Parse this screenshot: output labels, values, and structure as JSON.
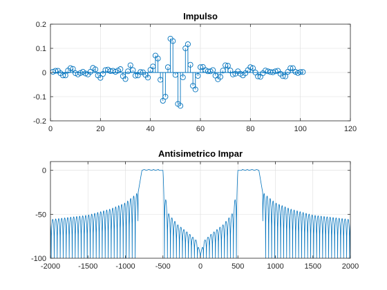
{
  "chart_data": [
    {
      "type": "stem",
      "title": "Impulso",
      "xlim": [
        0,
        120
      ],
      "ylim": [
        -0.2,
        0.2
      ],
      "xticks": [
        0,
        20,
        40,
        60,
        80,
        100,
        120
      ],
      "yticks": [
        -0.2,
        -0.1,
        0,
        0.1,
        0.2
      ],
      "xtick_labels": [
        "0",
        "20",
        "40",
        "60",
        "80",
        "100",
        "120"
      ],
      "ytick_labels": [
        "-0.2",
        "-0.1",
        "0",
        "0.1",
        "0.2"
      ],
      "grid": true,
      "color": "#0072BD",
      "x": [
        1,
        2,
        3,
        4,
        5,
        6,
        7,
        8,
        9,
        10,
        11,
        12,
        13,
        14,
        15,
        16,
        17,
        18,
        19,
        20,
        21,
        22,
        23,
        24,
        25,
        26,
        27,
        28,
        29,
        30,
        31,
        32,
        33,
        34,
        35,
        36,
        37,
        38,
        39,
        40,
        41,
        42,
        43,
        44,
        45,
        46,
        47,
        48,
        49,
        50,
        51,
        52,
        53,
        54,
        55,
        56,
        57,
        58,
        59,
        60,
        61,
        62,
        63,
        64,
        65,
        66,
        67,
        68,
        69,
        70,
        71,
        72,
        73,
        74,
        75,
        76,
        77,
        78,
        79,
        80,
        81,
        82,
        83,
        84,
        85,
        86,
        87,
        88,
        89,
        90,
        91,
        92,
        93,
        94,
        95,
        96,
        97,
        98,
        99,
        100,
        101
      ],
      "values": [
        0.003,
        0.007,
        0.007,
        -0.003,
        -0.012,
        -0.012,
        0.008,
        0.018,
        0.015,
        -0.003,
        -0.008,
        -0.002,
        0.003,
        -0.004,
        -0.008,
        0.003,
        0.019,
        0.013,
        -0.012,
        -0.022,
        -0.006,
        0.01,
        0.012,
        0.006,
        0.007,
        0.003,
        0.008,
        0.014,
        -0.015,
        -0.027,
        0.005,
        0.03,
        0.01,
        -0.013,
        -0.012,
        0.002,
        0.001,
        -0.01,
        -0.021,
        0.011,
        0.025,
        0.07,
        0.058,
        -0.03,
        -0.117,
        -0.1,
        0.022,
        0.14,
        0.13,
        -0.01,
        -0.13,
        -0.138,
        -0.02,
        0.1,
        0.117,
        0.032,
        -0.055,
        -0.07,
        -0.014,
        0.022,
        0.023,
        0.01,
        0.005,
        0.005,
        0.01,
        -0.013,
        -0.028,
        -0.018,
        0.008,
        0.03,
        0.028,
        0.008,
        -0.008,
        -0.005,
        0.005,
        -0.005,
        -0.012,
        -0.003,
        0.01,
        0.022,
        0.018,
        0,
        -0.016,
        -0.018,
        -0.003,
        0.008,
        0.005,
        0.002,
        0.001,
        0.005,
        0.007,
        -0.005,
        -0.015,
        -0.016,
        0.003,
        0.018,
        0.018,
        0.003,
        -0.002,
        0.002,
        0.002
      ]
    },
    {
      "type": "line",
      "title": "Antisimetrico Impar",
      "xlim": [
        -2000,
        2000
      ],
      "ylim": [
        -100,
        10
      ],
      "xticks": [
        -2000,
        -1500,
        -1000,
        -500,
        0,
        500,
        1000,
        1500,
        2000
      ],
      "yticks": [
        -100,
        -50,
        0
      ],
      "xtick_labels": [
        "-2000",
        "-1500",
        "-1000",
        "-500",
        "0",
        "500",
        "1000",
        "1500",
        "2000"
      ],
      "ytick_labels": [
        "-100",
        "-50",
        "0"
      ],
      "grid": true,
      "color": "#0072BD",
      "series": [
        {
          "passband": [
            [
              500,
              0
            ],
            [
              550,
              0
            ],
            [
              560,
              1
            ],
            [
              600,
              0
            ],
            [
              625,
              1
            ],
            [
              650,
              0
            ],
            [
              690,
              1
            ],
            [
              720,
              0
            ],
            [
              750,
              1
            ],
            [
              780,
              0
            ]
          ],
          "transition": [
            [
              780,
              0
            ],
            [
              800,
              -10
            ],
            [
              830,
              -25
            ]
          ],
          "envelope": [
            [
              830,
              -25
            ],
            [
              1000,
              -37
            ],
            [
              1200,
              -44
            ],
            [
              1500,
              -51
            ],
            [
              2000,
              -56
            ]
          ],
          "near_dc": [
            [
              0,
              -95
            ],
            [
              50,
              -80
            ],
            [
              150,
              -72
            ],
            [
              300,
              -62
            ],
            [
              420,
              -50
            ],
            [
              470,
              -30
            ],
            [
              500,
              0
            ]
          ],
          "floor": -100,
          "ripple_spacing": 40,
          "symmetry": "even"
        }
      ]
    }
  ]
}
